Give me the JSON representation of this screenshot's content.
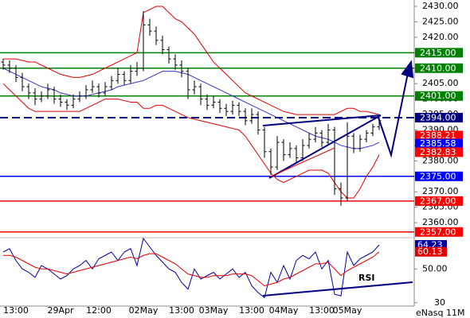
{
  "chart_data": [
    {
      "type": "ohlc",
      "xticks": [
        {
          "value": 2,
          "label": "13:00"
        },
        {
          "value": 9,
          "label": "29Apr"
        },
        {
          "value": 15,
          "label": "12:00"
        },
        {
          "value": 22,
          "label": "02May"
        },
        {
          "value": 28,
          "label": "13:00"
        },
        {
          "value": 33,
          "label": "03May"
        },
        {
          "value": 39,
          "label": "13:00"
        },
        {
          "value": 44,
          "label": "04May"
        },
        {
          "value": 50,
          "label": "13:00"
        },
        {
          "value": 54,
          "label": "05May"
        }
      ],
      "open": [
        2412,
        2411,
        2410,
        2407,
        2404,
        2402,
        2400,
        2401,
        2403,
        2400,
        2399,
        2398,
        2400,
        2401,
        2403,
        2404,
        2402,
        2404,
        2406,
        2408,
        2406,
        2409,
        2410,
        2424,
        2422,
        2419,
        2416,
        2413,
        2411,
        2409,
        2403,
        2404,
        2400,
        2398,
        2399,
        2397,
        2396,
        2398,
        2396,
        2393,
        2395,
        2390,
        2383,
        2378,
        2386,
        2382,
        2384,
        2381,
        2385,
        2387,
        2389,
        2386,
        2390,
        2371,
        2368,
        2388,
        2384,
        2387,
        2389,
        2391
      ],
      "high": [
        2413,
        2412.5,
        2411,
        2408.5,
        2405,
        2403.5,
        2402.5,
        2405,
        2404,
        2401.5,
        2400,
        2401.5,
        2402.5,
        2404.5,
        2406,
        2405,
        2405.5,
        2407.5,
        2410,
        2409,
        2411,
        2412,
        2428.5,
        2426,
        2423.5,
        2420.5,
        2417,
        2414.5,
        2412.5,
        2410,
        2406,
        2405,
        2401.5,
        2401,
        2400,
        2398.5,
        2399.5,
        2399,
        2397,
        2397,
        2396,
        2391,
        2384,
        2388,
        2387,
        2386,
        2385,
        2387,
        2389,
        2391,
        2390,
        2392,
        2391,
        2373,
        2392.5,
        2389,
        2388.5,
        2390,
        2392,
        2394.5
      ],
      "low": [
        2409.5,
        2408.5,
        2405.5,
        2402.5,
        2400,
        2398,
        2399,
        2400,
        2398.5,
        2397.5,
        2396.5,
        2397,
        2399,
        2400,
        2402,
        2400.5,
        2401,
        2403,
        2405,
        2404.5,
        2405,
        2407.5,
        2409,
        2420.5,
        2417.5,
        2414.5,
        2411.5,
        2409.5,
        2407,
        2400,
        2401.5,
        2398,
        2396.5,
        2397,
        2395.5,
        2394.5,
        2395,
        2394.5,
        2391.5,
        2392,
        2388.5,
        2381,
        2375.5,
        2377,
        2380,
        2381,
        2379.5,
        2380,
        2384,
        2386,
        2384.5,
        2385,
        2369,
        2365.5,
        2367,
        2382.5,
        2383,
        2386,
        2388,
        2390
      ],
      "close": [
        2411,
        2410,
        2407,
        2404,
        2402,
        2400,
        2401,
        2403,
        2400,
        2399,
        2398,
        2400,
        2401,
        2403,
        2404,
        2402,
        2404,
        2406,
        2408,
        2406,
        2409,
        2410,
        2424,
        2422,
        2419,
        2416,
        2413,
        2411,
        2409,
        2403,
        2404,
        2400,
        2398,
        2399,
        2397,
        2396,
        2398,
        2396,
        2393,
        2395,
        2390,
        2383,
        2378,
        2386,
        2382,
        2384,
        2381,
        2385,
        2387,
        2389,
        2386,
        2390,
        2371,
        2368,
        2388,
        2384,
        2387,
        2389,
        2391,
        2393
      ],
      "bar_color": "#000000",
      "lines": [
        {
          "color": "#e00000",
          "values": [
            2413,
            2413,
            2413,
            2412.5,
            2412,
            2412,
            2411,
            2410,
            2409,
            2408,
            2407.5,
            2407,
            2407,
            2407.5,
            2408,
            2409,
            2410,
            2411,
            2412,
            2413,
            2414,
            2415,
            2428,
            2429,
            2430,
            2430,
            2428,
            2426,
            2425,
            2423,
            2421,
            2418,
            2415,
            2412,
            2410,
            2408,
            2406,
            2404,
            2402,
            2401,
            2400,
            2399,
            2398,
            2397,
            2396,
            2395.5,
            2395,
            2395,
            2395,
            2395,
            2395,
            2395,
            2395,
            2396,
            2397,
            2397,
            2396,
            2396,
            2395.5,
            2395
          ]
        },
        {
          "color": "#e00000",
          "values": [
            2405,
            2403,
            2401,
            2399,
            2397,
            2396,
            2396,
            2396,
            2396,
            2396,
            2396,
            2396,
            2396,
            2397,
            2398,
            2399,
            2400,
            2400,
            2400,
            2399.5,
            2399,
            2399,
            2397,
            2397,
            2398,
            2398,
            2397,
            2396,
            2395,
            2394,
            2393.5,
            2393,
            2392.5,
            2392,
            2391.5,
            2391,
            2390.5,
            2390,
            2388,
            2385,
            2382,
            2379,
            2376,
            2374,
            2373,
            2374,
            2375,
            2376,
            2377,
            2377,
            2377,
            2376,
            2373,
            2370,
            2368,
            2368,
            2371,
            2375,
            2378,
            2382
          ]
        },
        {
          "color": "#3333cc",
          "values": [
            2410,
            2409,
            2408,
            2407,
            2406,
            2405,
            2404,
            2403.5,
            2403,
            2402,
            2401.5,
            2401,
            2401,
            2401,
            2401.5,
            2402,
            2402.5,
            2403,
            2404,
            2404.5,
            2405,
            2405.5,
            2406,
            2407,
            2408,
            2409,
            2409,
            2409,
            2408.5,
            2408,
            2407,
            2406,
            2405,
            2404,
            2403,
            2402,
            2401,
            2400,
            2399,
            2398,
            2397,
            2396,
            2395,
            2394,
            2393,
            2392,
            2391,
            2390,
            2389,
            2388,
            2387.5,
            2387,
            2386,
            2385,
            2384.5,
            2384,
            2384,
            2384.5,
            2385,
            2386
          ]
        }
      ],
      "levels": [
        {
          "value": 2415,
          "label": "2415.00",
          "color": "#008000",
          "style": "solid"
        },
        {
          "value": 2410,
          "label": "2410.00",
          "color": "#008000",
          "style": "solid"
        },
        {
          "value": 2401,
          "label": "2401.00",
          "color": "#008000",
          "style": "solid"
        },
        {
          "value": 2394,
          "label": "2394.00",
          "color": "#000080",
          "style": "dashed"
        },
        {
          "value": 2388.21,
          "label": "2388.21",
          "color": "#ff0000",
          "style": "none"
        },
        {
          "value": 2385.58,
          "label": "2385.58",
          "color": "#0000ff",
          "style": "none"
        },
        {
          "value": 2382.83,
          "label": "2382.83",
          "color": "#ff0000",
          "style": "none"
        },
        {
          "value": 2375,
          "label": "2375.00",
          "color": "#0000ff",
          "style": "solid"
        },
        {
          "value": 2367,
          "label": "2367.00",
          "color": "#ff0000",
          "style": "solid"
        },
        {
          "value": 2357,
          "label": "2357.00",
          "color": "#ff0000",
          "style": "solid"
        }
      ],
      "ylim": [
        2355.4,
        2432.06
      ],
      "yticks": [
        {
          "value": 2360,
          "label": "2360.00"
        },
        {
          "value": 2365,
          "label": "2365.00"
        },
        {
          "value": 2370,
          "label": "2370.00"
        },
        {
          "value": 2375,
          "label": "2375.00"
        },
        {
          "value": 2380,
          "label": "2380.00"
        },
        {
          "value": 2385,
          "label": "2385.00"
        },
        {
          "value": 2390,
          "label": "2390.00"
        },
        {
          "value": 2395,
          "label": "2395.00"
        },
        {
          "value": 2400,
          "label": "2400.00"
        },
        {
          "value": 2405,
          "label": "2405.00"
        },
        {
          "value": 2410,
          "label": "2410.00"
        },
        {
          "value": 2415,
          "label": "2415.00"
        },
        {
          "value": 2420,
          "label": "2420.00"
        },
        {
          "value": 2425,
          "label": "2425.00"
        },
        {
          "value": 2430,
          "label": "2430.00"
        }
      ]
    },
    {
      "type": "line",
      "title": "RSI",
      "series": [
        {
          "color": "#0000a0",
          "values": [
            60,
            62,
            55,
            50,
            48,
            45,
            52,
            50,
            47,
            44,
            46,
            50,
            52,
            55,
            50,
            56,
            58,
            60,
            55,
            60,
            62,
            52,
            68,
            63,
            58,
            54,
            50,
            48,
            42,
            38,
            50,
            44,
            46,
            48,
            44,
            47,
            50,
            45,
            48,
            40,
            36,
            33,
            48,
            42,
            52,
            44,
            55,
            58,
            56,
            60,
            50,
            55,
            35,
            34,
            60,
            52,
            56,
            58,
            60,
            64.23
          ]
        },
        {
          "color": "#e00000",
          "values": [
            58,
            58,
            57,
            55,
            53,
            51,
            50,
            50,
            49,
            48,
            47,
            48,
            49,
            50,
            51,
            52,
            53,
            54,
            55,
            56,
            57,
            56,
            58,
            59,
            59,
            57,
            55,
            53,
            50,
            47,
            46,
            45,
            45,
            46,
            46,
            46,
            47,
            47,
            47,
            46,
            43,
            40,
            41,
            42,
            44,
            45,
            47,
            49,
            51,
            53,
            53,
            54,
            50,
            46,
            49,
            51,
            53,
            55,
            57,
            60.13
          ]
        }
      ],
      "ylim": [
        28,
        68
      ],
      "yticks": [
        {
          "value": 50,
          "label": "50.00"
        },
        30
      ]
    }
  ],
  "source": "eNasq 11M"
}
